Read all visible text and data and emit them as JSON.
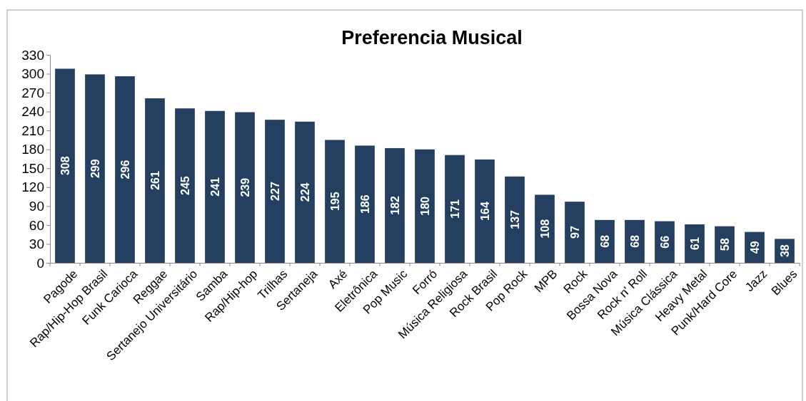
{
  "chart_data": {
    "type": "bar",
    "title": "Preferencia Musical",
    "categories": [
      "Pagode",
      "Rap/Hip-Hop Brasil",
      "Funk Carioca",
      "Reggae",
      "Sertanejo Universitário",
      "Samba",
      "Rap/Hip-hop",
      "Trilhas",
      "Sertaneja",
      "Axé",
      "Eletrônica",
      "Pop Music",
      "Forró",
      "Música Religiosa",
      "Rock Brasil",
      "Pop Rock",
      "MPB",
      "Rock",
      "Bossa Nova",
      "Rock n' Roll",
      "Música Clássica",
      "Heavy Metal",
      "Punk/Hard Core",
      "Jazz",
      "Blues"
    ],
    "values": [
      308,
      299,
      296,
      261,
      245,
      241,
      239,
      227,
      224,
      195,
      186,
      182,
      180,
      171,
      164,
      137,
      108,
      97,
      68,
      68,
      66,
      61,
      58,
      49,
      38
    ],
    "color": "#243f60",
    "ylim": [
      0,
      330
    ],
    "yticks": [
      0,
      30,
      60,
      90,
      120,
      150,
      180,
      210,
      240,
      270,
      300,
      330
    ],
    "data_labels": true
  }
}
